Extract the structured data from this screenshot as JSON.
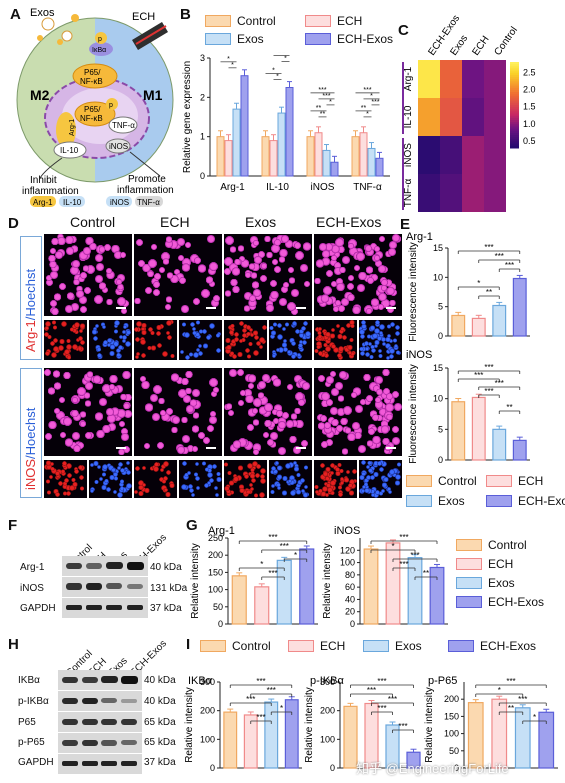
{
  "colors": {
    "control_fill": "#fbd9b0",
    "control_edge": "#f0a860",
    "ech_fill": "#fddede",
    "ech_edge": "#f08a8a",
    "exos_fill": "#c6e0f6",
    "exos_edge": "#6aa7dc",
    "echexos_fill": "#9fa1ee",
    "echexos_edge": "#5a5ed8",
    "m2": "#c9ddb0",
    "m1": "#a9cbee"
  },
  "panel_a": {
    "letter": "A",
    "exos": "Exos",
    "ech": "ECH",
    "p1": "p",
    "ikba": "IκBα",
    "p65_top": "P65/",
    "nfkb_top": "NF-κB",
    "p65_mid": "P65/",
    "nfkb_mid": "NF-κB",
    "p2": "p",
    "m2": "M2",
    "m1": "M1",
    "arg1": "Arg-1",
    "il10": "IL-10",
    "tnfa": "TNF-α",
    "inos": "iNOS",
    "inhibit_1": "Inhibit",
    "inhibit_2": "inflammation",
    "promote_1": "Promote",
    "promote_2": "inflammation",
    "tag_arg1": "Arg-1",
    "tag_il10": "IL-10",
    "tag_inos": "iNOS",
    "tag_tnfa": "TNF-α"
  },
  "legend_groups": [
    "Control",
    "ECH",
    "Exos",
    "ECH-Exos"
  ],
  "sig": {
    "s1": "*",
    "s2": "**",
    "s3": "***"
  },
  "chart_data": [
    {
      "panel": "B",
      "type": "bar",
      "ylabel": "Relative gene expression",
      "ylim": [
        0,
        3
      ],
      "yticks": [
        0,
        1,
        2,
        3
      ],
      "categories": [
        "Arg-1",
        "IL-10",
        "iNOS",
        "TNF-α"
      ],
      "series": [
        {
          "name": "Control",
          "values": [
            1.0,
            1.0,
            1.0,
            1.0
          ]
        },
        {
          "name": "ECH",
          "values": [
            0.9,
            0.9,
            1.1,
            1.1
          ]
        },
        {
          "name": "Exos",
          "values": [
            1.7,
            1.6,
            0.65,
            0.7
          ]
        },
        {
          "name": "ECH-Exos",
          "values": [
            2.55,
            2.25,
            0.35,
            0.45
          ]
        }
      ]
    },
    {
      "panel": "C",
      "type": "heatmap",
      "columns": [
        "ECH-Exos",
        "Exos",
        "ECH",
        "Control"
      ],
      "rows": [
        "Arg-1",
        "IL-10",
        "iNOS",
        "TNF-α"
      ],
      "values": [
        [
          2.7,
          1.8,
          0.9,
          1.0
        ],
        [
          2.2,
          1.7,
          0.8,
          1.0
        ],
        [
          0.4,
          0.6,
          1.1,
          1.0
        ],
        [
          0.5,
          0.7,
          1.1,
          1.0
        ]
      ],
      "colorbar_ticks": [
        0.5,
        1.0,
        1.5,
        2.0,
        2.5
      ]
    },
    {
      "panel": "E-top",
      "type": "bar",
      "title": "Arg-1",
      "ylabel": "Fluorescence intensity",
      "ylim": [
        0,
        15
      ],
      "yticks": [
        0,
        5,
        10,
        15
      ],
      "categories": [
        "Control",
        "ECH",
        "Exos",
        "ECH-Exos"
      ],
      "values": [
        3.5,
        3.0,
        5.2,
        9.8
      ]
    },
    {
      "panel": "E-bottom",
      "type": "bar",
      "title": "iNOS",
      "ylabel": "Fluorescence intensity",
      "ylim": [
        0,
        15
      ],
      "yticks": [
        0,
        5,
        10,
        15
      ],
      "categories": [
        "Control",
        "ECH",
        "Exos",
        "ECH-Exos"
      ],
      "values": [
        9.5,
        10.2,
        5.0,
        3.2
      ]
    },
    {
      "panel": "G-left",
      "type": "bar",
      "title": "Arg-1",
      "ylabel": "Relative intensity",
      "ylim": [
        0,
        250
      ],
      "yticks": [
        0,
        50,
        100,
        150,
        200,
        250
      ],
      "categories": [
        "Control",
        "ECH",
        "Exos",
        "ECH-Exos"
      ],
      "values": [
        140,
        108,
        185,
        218
      ]
    },
    {
      "panel": "G-right",
      "type": "bar",
      "title": "iNOS",
      "ylabel": "Relative intensity",
      "ylim": [
        0,
        140
      ],
      "yticks": [
        0,
        20,
        40,
        60,
        80,
        100,
        120
      ],
      "categories": [
        "Control",
        "ECH",
        "Exos",
        "ECH-Exos"
      ],
      "values": [
        122,
        132,
        108,
        92
      ]
    },
    {
      "panel": "I-1",
      "type": "bar",
      "title": "IKBα",
      "ylabel": "Relative intensity",
      "ylim": [
        0,
        300
      ],
      "yticks": [
        0,
        100,
        200,
        300
      ],
      "categories": [
        "Control",
        "ECH",
        "Exos",
        "ECH-Exos"
      ],
      "values": [
        195,
        185,
        230,
        238
      ]
    },
    {
      "panel": "I-2",
      "type": "bar",
      "title": "p-IKBα",
      "ylabel": "Relative intensity",
      "ylim": [
        0,
        300
      ],
      "yticks": [
        0,
        100,
        200,
        300
      ],
      "categories": [
        "Control",
        "ECH",
        "Exos",
        "ECH-Exos"
      ],
      "values": [
        215,
        225,
        150,
        55
      ]
    },
    {
      "panel": "I-3",
      "type": "bar",
      "title": "p-P65",
      "ylabel": "Relative intensity",
      "ylim": [
        0,
        250
      ],
      "yticks": [
        0,
        50,
        100,
        150,
        200
      ],
      "categories": [
        "Control",
        "ECH",
        "Exos",
        "ECH-Exos"
      ],
      "values": [
        190,
        200,
        175,
        162
      ]
    }
  ],
  "panel_d": {
    "letter": "D",
    "cols": [
      "Control",
      "ECH",
      "Exos",
      "ECH-Exos"
    ],
    "row1_a": "Arg-1",
    "row1_b": "/Hoechst",
    "row2_a": "iNOS",
    "row2_b": "/Hoechst"
  },
  "panel_e": {
    "letter": "E"
  },
  "panel_f": {
    "letter": "F",
    "lanes": [
      "Control",
      "ECH",
      "Exos",
      "ECH-Exos"
    ],
    "rows": [
      "Arg-1",
      "iNOS",
      "GAPDH"
    ],
    "kda": [
      "40 kDa",
      "131 kDa",
      "37 kDa"
    ]
  },
  "panel_g": {
    "letter": "G"
  },
  "panel_h": {
    "letter": "H",
    "lanes": [
      "Control",
      "ECH",
      "Exos",
      "ECH-Exos"
    ],
    "rows": [
      "IKBα",
      "p-IKBα",
      "P65",
      "p-P65",
      "GAPDH"
    ],
    "kda": [
      "40 kDa",
      "40 kDa",
      "65 kDa",
      "65 kDa",
      "37 kDa"
    ]
  },
  "panel_i": {
    "letter": "I"
  },
  "watermark": "知乎 @EngineeringForLife"
}
